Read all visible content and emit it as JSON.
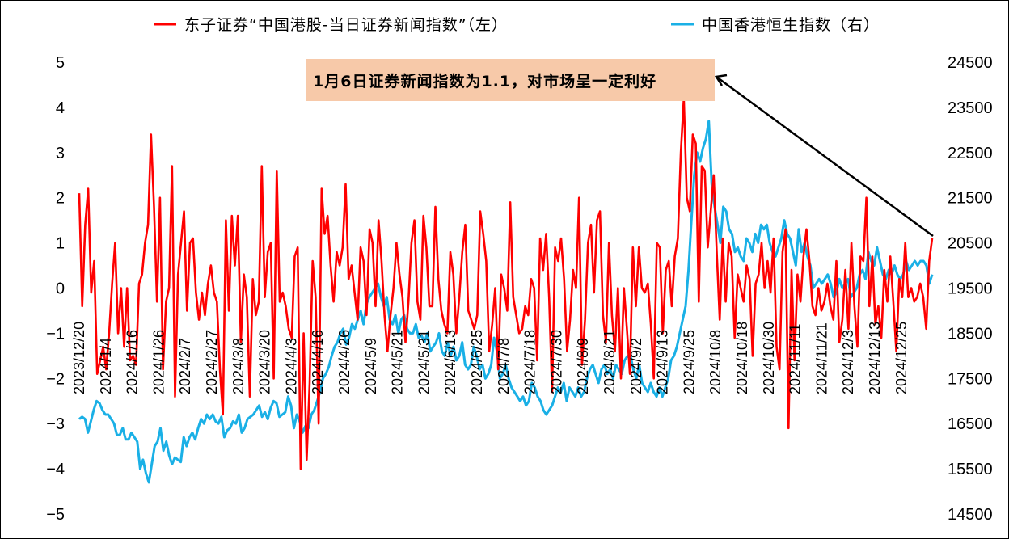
{
  "chart_data": {
    "type": "line",
    "dual_axis": true,
    "legend": [
      {
        "label": "东子证券“中国港股-当日证券新闻指数”（左）",
        "color": "#ff0000"
      },
      {
        "label": "中国香港恒生指数（右）",
        "color": "#1ab0e6"
      }
    ],
    "left_axis": {
      "min": -5,
      "max": 5,
      "ticks": [
        "5",
        "4",
        "3",
        "2",
        "1",
        "0",
        "−1",
        "−2",
        "−3",
        "−4",
        "−5"
      ]
    },
    "right_axis": {
      "min": 14500,
      "max": 24500,
      "ticks": [
        "24500",
        "23500",
        "22500",
        "21500",
        "20500",
        "19500",
        "18500",
        "17500",
        "16500",
        "15500",
        "14500"
      ]
    },
    "x_tick_labels": [
      "2023/12/20",
      "2024/1/4",
      "2024/1/16",
      "2024/1/26",
      "2024/2/7",
      "2024/2/27",
      "2024/3/8",
      "2024/3/20",
      "2024/4/3",
      "2024/4/16",
      "2024/4/26",
      "2024/5/9",
      "2024/5/21",
      "2024/5/31",
      "2024/6/13",
      "2024/6/25",
      "2024/7/8",
      "2024/7/18",
      "2024/7/30",
      "2024/8/9",
      "2024/8/21",
      "2024/9/2",
      "2024/9/13",
      "2024/9/25",
      "2024/10/8",
      "2024/10/18",
      "2024/10/30",
      "2024/11/11",
      "2024/11/21",
      "2024/12/3",
      "2024/12/13",
      "2024/12/25"
    ],
    "annotation": {
      "text": "1月6日证券新闻指数为1.1，对市场呈一定利好",
      "color": "#f7c9a9"
    },
    "series": [
      {
        "name": "东子证券“中国港股-当日证券新闻指数”（左）",
        "axis": "left",
        "color": "#ff0000",
        "values": [
          2.1,
          -0.4,
          1.4,
          2.2,
          -0.1,
          0.6,
          -1.9,
          -1.6,
          -1.3,
          -1.8,
          -1.0,
          0.1,
          1.0,
          -1.0,
          0.0,
          -1.3,
          0.0,
          -1.6,
          -1.5,
          -1.7,
          0.1,
          0.3,
          1.0,
          1.4,
          3.4,
          1.8,
          -0.3,
          2.0,
          -1.8,
          -0.3,
          0.0,
          2.7,
          -2.4,
          0.3,
          1.0,
          1.7,
          -0.5,
          1.0,
          1.1,
          -0.1,
          -0.7,
          -0.1,
          -0.6,
          0.1,
          0.5,
          -0.1,
          -0.3,
          -1.8,
          -2.8,
          1.5,
          -0.5,
          1.6,
          0.5,
          1.6,
          -1.2,
          0.3,
          -0.2,
          -2.4,
          0.2,
          -0.6,
          -0.3,
          2.7,
          -0.2,
          0.8,
          1.0,
          -2.0,
          2.6,
          -0.3,
          -0.1,
          -0.4,
          -0.9,
          -1.1,
          0.7,
          0.9,
          -4.0,
          -1.0,
          -3.8,
          -2.1,
          0.6,
          -0.2,
          -3.0,
          2.2,
          1.2,
          1.6,
          0.5,
          -0.3,
          0.8,
          0.5,
          0.9,
          2.3,
          0.2,
          0.5,
          -0.1,
          -0.7,
          0.9,
          0.6,
          -0.6,
          1.3,
          1.0,
          -0.4,
          1.5,
          0.6,
          -0.6,
          -1.4,
          -0.6,
          0.0,
          1.0,
          0.3,
          -0.2,
          -1.2,
          -0.3,
          1.0,
          1.5,
          -0.3,
          -0.7,
          1.6,
          0.9,
          -0.4,
          -0.4,
          1.8,
          0.2,
          -0.5,
          -0.8,
          -1.0,
          0.8,
          0.3,
          -1.0,
          -0.2,
          0.8,
          1.4,
          -0.5,
          -0.7,
          -0.9,
          -0.6,
          1.7,
          1.2,
          0.6,
          -1.4,
          -0.8,
          0.0,
          -1.8,
          0.3,
          0.0,
          -0.5,
          1.9,
          -0.2,
          -0.6,
          -1.0,
          -0.9,
          -0.4,
          -0.6,
          0.2,
          0.0,
          -1.6,
          1.1,
          0.4,
          1.2,
          -0.2,
          -2.3,
          0.9,
          0.6,
          1.1,
          0.2,
          -1.4,
          -0.7,
          0.4,
          0.0,
          2.0,
          -1.7,
          -0.7,
          1.0,
          1.4,
          -0.1,
          1.5,
          1.7,
          -0.6,
          -1.2,
          1.0,
          -0.6,
          -1.4,
          0.0,
          -2.0,
          0.0,
          -0.9,
          -1.9,
          0.9,
          -0.4,
          0.9,
          0.0,
          -0.1,
          0.1,
          -0.8,
          -2.0,
          1.0,
          0.9,
          -1.0,
          0.4,
          0.6,
          -0.4,
          0.7,
          1.1,
          3.0,
          4.2,
          2.0,
          1.7,
          3.4,
          3.2,
          -0.3,
          2.7,
          2.6,
          0.9,
          1.7,
          2.5,
          0.8,
          -0.7,
          1.1,
          -0.3,
          1.0,
          0.7,
          -1.1,
          0.3,
          0.0,
          -0.3,
          0.5,
          0.2,
          -1.5,
          0.1,
          0.3,
          1.0,
          0.0,
          0.6,
          -0.1,
          1.1,
          -1.3,
          -1.8,
          0.8,
          1.3,
          -3.1,
          0.4,
          -1.6,
          0.3,
          -0.3,
          0.7,
          1.3,
          0.6,
          -0.4,
          -0.6,
          0.0,
          -0.5,
          -0.3,
          0.1,
          -0.4,
          -0.7,
          0.6,
          -1.2,
          -0.7,
          0.4,
          -0.9,
          1.0,
          -0.4,
          -1.3,
          0.7,
          0.6,
          2.0,
          -0.4,
          0.7,
          -0.8,
          -0.4,
          -1.1,
          0.4,
          -0.3,
          0.7,
          -0.3,
          -1.4,
          0.2,
          -0.2,
          1.0,
          -0.2,
          0.0,
          -0.3,
          -0.2,
          0.1,
          -0.2,
          -0.9,
          0.6,
          1.1
        ]
      },
      {
        "name": "中国香港恒生指数（右）",
        "axis": "right",
        "color": "#1ab0e6",
        "values": [
          16600,
          16650,
          16600,
          16300,
          16550,
          16800,
          17000,
          16950,
          16800,
          16700,
          16700,
          16600,
          16500,
          16250,
          16250,
          16400,
          16150,
          16150,
          16300,
          16200,
          16100,
          15500,
          15700,
          15400,
          15200,
          15600,
          16000,
          16100,
          16400,
          15900,
          16100,
          15800,
          15600,
          15750,
          15700,
          15650,
          16200,
          16000,
          16200,
          16300,
          16150,
          16400,
          16600,
          16500,
          16700,
          16600,
          16700,
          16550,
          16500,
          16650,
          16200,
          16350,
          16400,
          16550,
          16500,
          16700,
          16300,
          16400,
          16600,
          16650,
          16700,
          16800,
          16900,
          16650,
          16750,
          16600,
          16850,
          17000,
          16950,
          16650,
          16700,
          16750,
          17100,
          16900,
          16400,
          16700,
          16550,
          16300,
          16450,
          16400,
          16700,
          16800,
          17000,
          17200,
          17500,
          17600,
          17750,
          18000,
          18200,
          18300,
          18500,
          18600,
          18250,
          18400,
          18700,
          18600,
          18800,
          19000,
          18700,
          19150,
          19300,
          19400,
          19500,
          19600,
          19300,
          19100,
          19300,
          18800,
          18700,
          18900,
          18500,
          18800,
          18900,
          18600,
          18500,
          18500,
          18700,
          18400,
          18450,
          18300,
          18500,
          18100,
          18200,
          18300,
          18500,
          18100,
          18000,
          18300,
          18000,
          18200,
          17900,
          18000,
          18300,
          17800,
          17700,
          17800,
          18200,
          18000,
          17700,
          17800,
          17500,
          17600,
          17800,
          18400,
          18100,
          17500,
          17600,
          17800,
          17500,
          17300,
          17200,
          17100,
          17000,
          17100,
          16900,
          17000,
          17400,
          17300,
          17100,
          17000,
          16800,
          16700,
          16800,
          16900,
          17100,
          17300,
          17200,
          17400,
          17000,
          17300,
          17200,
          17100,
          17300,
          17100,
          17200,
          17500,
          17700,
          17800,
          17600,
          17400,
          17700,
          17800,
          17600,
          17700,
          17500,
          17800,
          17700,
          17600,
          17900,
          18000,
          18000,
          17700,
          17500,
          17800,
          17400,
          17300,
          17200,
          17400,
          17200,
          17100,
          17300,
          17100,
          17300,
          17500,
          17900,
          18000,
          18200,
          18500,
          18800,
          19100,
          19900,
          21000,
          22000,
          22500,
          22300,
          22600,
          22800,
          23200,
          21800,
          21300,
          20900,
          20500,
          21300,
          21200,
          20800,
          20700,
          20300,
          20400,
          20200,
          20100,
          20600,
          20500,
          20300,
          20700,
          20500,
          20900,
          20800,
          20900,
          20500,
          20300,
          20200,
          20400,
          20600,
          21000,
          20700,
          20600,
          20300,
          20000,
          20800,
          20300,
          20500,
          20200,
          20000,
          19500,
          19600,
          19700,
          19600,
          19700,
          19800,
          19600,
          19300,
          19400,
          19700,
          19500,
          19600,
          19700,
          19300,
          19400,
          19500,
          19800,
          19900,
          19700,
          20300,
          20100,
          20000,
          20400,
          20100,
          19800,
          19700,
          19900,
          19800,
          20000,
          19800,
          19700,
          19800,
          20100,
          19900,
          20000,
          20100,
          20000,
          20100,
          20100,
          20000,
          19600,
          19800
        ]
      }
    ]
  }
}
